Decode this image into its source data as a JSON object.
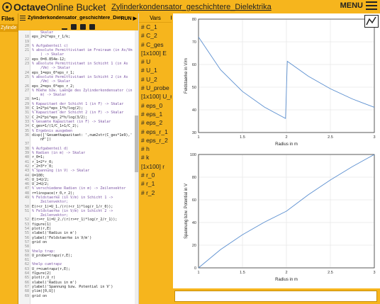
{
  "app": {
    "brand_bold": "Octave",
    "brand_light": "Online",
    "brand_bucket": "Bucket",
    "doc_title": "Zylinderkondensator_geschichtere_Dielektrika",
    "menu_label": "MENU"
  },
  "files": {
    "header": "Files",
    "items": [
      "Zylinde"
    ]
  },
  "editor": {
    "filename": "Zylinderkondensator_geschichtere_Dielek",
    "run_label": "RUN",
    "lines": [
      {
        "n": "",
        "t": "    Skalar",
        "k": "c"
      },
      {
        "n": "18",
        "t": "eps_2=2*eps_r_1/k;",
        "k": ""
      },
      {
        "n": "19",
        "t": "",
        "k": ""
      },
      {
        "n": "20",
        "t": "% Aufgabenteil c)",
        "k": "c"
      },
      {
        "n": "21",
        "t": "% absolute Permittivitaet im Freiraum (in As/Vm",
        "k": "c"
      },
      {
        "n": "",
        "t": "    ) -> Skalar",
        "k": "c"
      },
      {
        "n": "22",
        "t": "eps_0=8.854e-12;",
        "k": ""
      },
      {
        "n": "23",
        "t": "% absolute Permittivitaet in Schicht 1 (in As",
        "k": "c"
      },
      {
        "n": "",
        "t": "    /Vm) -> Skalar",
        "k": "c"
      },
      {
        "n": "24",
        "t": "eps_1=eps_0*eps_r_1;",
        "k": ""
      },
      {
        "n": "25",
        "t": "% absolute Permittivitaet in Schicht 2 (in As",
        "k": "c"
      },
      {
        "n": "",
        "t": "    /Vm) -> Skalar",
        "k": "c"
      },
      {
        "n": "26",
        "t": "eps_2=eps_0*eps_r_2;",
        "k": ""
      },
      {
        "n": "27",
        "t": "% Hoehe bzw. Laenge des Zylinderkondensator (in",
        "k": "c"
      },
      {
        "n": "",
        "t": "    m) -> Skalar",
        "k": "c"
      },
      {
        "n": "28",
        "t": "h=1;",
        "k": ""
      },
      {
        "n": "29",
        "t": "% Kapazitaet der Schicht 1 (in F) -> Skalar",
        "k": "c"
      },
      {
        "n": "30",
        "t": "C_1=2*pi*eps_1*h/log(2);",
        "k": ""
      },
      {
        "n": "31",
        "t": "% Kapazitaet der Schicht 2 (in F) -> Skalar",
        "k": "c"
      },
      {
        "n": "32",
        "t": "C_2=2*pi*eps_2*h/log(3/2);",
        "k": ""
      },
      {
        "n": "33",
        "t": "% Gesamte Kapazitaet (in F) -> Skalar",
        "k": "c"
      },
      {
        "n": "34",
        "t": "C_ges=1/(1/C_1+1/C_2);",
        "k": ""
      },
      {
        "n": "35",
        "t": "% Ergebnis ausgeben",
        "k": "c"
      },
      {
        "n": "36",
        "t": "disp(['Gesamtkapazitaet: ',num2str(C_ges*1e9),'",
        "k": ""
      },
      {
        "n": "",
        "t": "    nF'])",
        "k": ""
      },
      {
        "n": "37",
        "t": "",
        "k": ""
      },
      {
        "n": "38",
        "t": "% Aufgabenteil d)",
        "k": "c"
      },
      {
        "n": "39",
        "t": "% Radien (in m) -> Skalar",
        "k": "c"
      },
      {
        "n": "40",
        "t": "r_0=1;",
        "k": ""
      },
      {
        "n": "41",
        "t": "r_1=2*r_0;",
        "k": ""
      },
      {
        "n": "42",
        "t": "r_2=3*r_0;",
        "k": ""
      },
      {
        "n": "43",
        "t": "% Spannung (in V) -> Skalar",
        "k": "c"
      },
      {
        "n": "44",
        "t": "U=100;",
        "k": ""
      },
      {
        "n": "45",
        "t": "U_1=U/2;",
        "k": ""
      },
      {
        "n": "46",
        "t": "U_2=U/2;",
        "k": ""
      },
      {
        "n": "47",
        "t": "% verschiedene Radien (in m) -> Zeilenvektor",
        "k": "c"
      },
      {
        "n": "48",
        "t": "r=linspace(r_0,r_2);",
        "k": ""
      },
      {
        "n": "49",
        "t": "% Feldstaerke (in V/m) in Schicht 1 ->",
        "k": "c"
      },
      {
        "n": "",
        "t": "    Zeilenvektor;",
        "k": "c"
      },
      {
        "n": "50",
        "t": "E(r<r_1)=U_1./(r(r<r_1)*log(r_1/r_0));",
        "k": ""
      },
      {
        "n": "51",
        "t": "% Feldstaerke (in V/m) in Schicht 2 ->",
        "k": "c"
      },
      {
        "n": "",
        "t": "    Zeilenvektor;",
        "k": "c"
      },
      {
        "n": "52",
        "t": "E(r>=r_1)=U_2./(r(r>=r_1)*log(r_2/r_1));",
        "k": ""
      },
      {
        "n": "53",
        "t": "figure(1)",
        "k": ""
      },
      {
        "n": "54",
        "t": "plot(r,E)",
        "k": ""
      },
      {
        "n": "55",
        "t": "xlabel('Radius in m')",
        "k": ""
      },
      {
        "n": "56",
        "t": "ylabel('Feldstaerke in V/m')",
        "k": ""
      },
      {
        "n": "57",
        "t": "grid on",
        "k": ""
      },
      {
        "n": "58",
        "t": "",
        "k": ""
      },
      {
        "n": "59",
        "t": "%help trap:",
        "k": "c"
      },
      {
        "n": "60",
        "t": "U_probe=trapz(r,E);",
        "k": ""
      },
      {
        "n": "61",
        "t": "",
        "k": ""
      },
      {
        "n": "62",
        "t": "%help cumtrapz",
        "k": "c"
      },
      {
        "n": "63",
        "t": "U_r=cumtrapz(r,E);",
        "k": ""
      },
      {
        "n": "64",
        "t": "figure(2)",
        "k": ""
      },
      {
        "n": "65",
        "t": "plot(r,U_r)",
        "k": ""
      },
      {
        "n": "66",
        "t": "xlabel('Radius in m')",
        "k": ""
      },
      {
        "n": "67",
        "t": "ylabel('Spannung bzw. Potential in V')",
        "k": ""
      },
      {
        "n": "68",
        "t": "ylim([0,U])",
        "k": ""
      },
      {
        "n": "69",
        "t": "grid on",
        "k": ""
      }
    ]
  },
  "vars": {
    "header": "Vars",
    "items": [
      "# C_1",
      "# C_2",
      "# C_ges",
      "[1x100] E",
      "# U",
      "# U_1",
      "# U_2",
      "# U_probe",
      "[1x100] U_r",
      "# eps_0",
      "# eps_1",
      "# eps_2",
      "# eps_r_1",
      "# eps_r_2",
      "# h",
      "# k",
      "[1x100] r",
      "# r_0",
      "# r_1",
      "# r_2"
    ]
  },
  "chart_data": [
    {
      "type": "line",
      "xlabel": "Radius in m",
      "ylabel": "Feldstaerke in V/m",
      "xlim": [
        1,
        3
      ],
      "ylim": [
        30,
        80
      ],
      "xticks": [
        1,
        1.5,
        2,
        2.5,
        3
      ],
      "yticks": [
        30,
        40,
        50,
        60,
        70,
        80
      ],
      "x": [
        1,
        1.25,
        1.5,
        1.75,
        1.99,
        2.01,
        2.25,
        2.5,
        2.75,
        3
      ],
      "y": [
        72.1,
        57.7,
        48.1,
        41.2,
        36.2,
        61.4,
        54.8,
        49.3,
        44.8,
        41.1
      ]
    },
    {
      "type": "line",
      "xlabel": "Radius in m",
      "ylabel": "Spannung bzw. Potential in V",
      "xlim": [
        1,
        3
      ],
      "ylim": [
        0,
        100
      ],
      "xticks": [
        1,
        1.5,
        2,
        2.5,
        3
      ],
      "yticks": [
        0,
        20,
        40,
        60,
        80,
        100
      ],
      "x": [
        1,
        1.25,
        1.5,
        1.75,
        2,
        2.25,
        2.5,
        2.75,
        3
      ],
      "y": [
        0,
        16.1,
        29.2,
        40.3,
        50,
        64.5,
        77.5,
        89.3,
        100
      ]
    }
  ]
}
